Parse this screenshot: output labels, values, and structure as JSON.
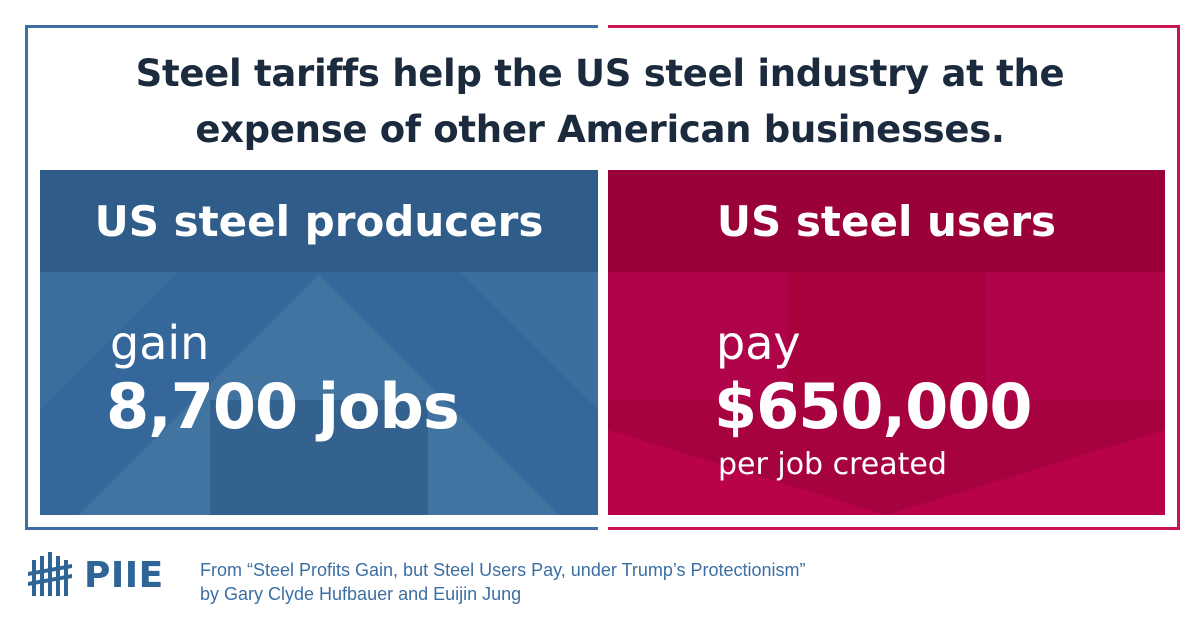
{
  "headline": {
    "line1": "Steel tariffs help the US steel industry at the",
    "line2": "expense of other American businesses."
  },
  "left_panel": {
    "heading": "US steel producers",
    "lead": "gain",
    "figure": "8,700 jobs",
    "arrow_direction": "up"
  },
  "right_panel": {
    "heading": "US steel users",
    "lead": "pay",
    "figure": "$650,000",
    "tail": "per job created",
    "arrow_direction": "down"
  },
  "footer": {
    "logo_text": "PIIE",
    "logo_icon": "piie-building-icon",
    "credit_line1": "From “Steel Profits Gain, but Steel Users Pay, under Trump’s Protectionism”",
    "credit_line2": "by Gary Clyde Hufbauer and Euijin Jung"
  },
  "colors": {
    "blue": "#3c6f9d",
    "blue_dark": "#2f5c88",
    "red": "#b8034a",
    "red_dark": "#9b0139",
    "headline_text": "#1b2a3c"
  }
}
